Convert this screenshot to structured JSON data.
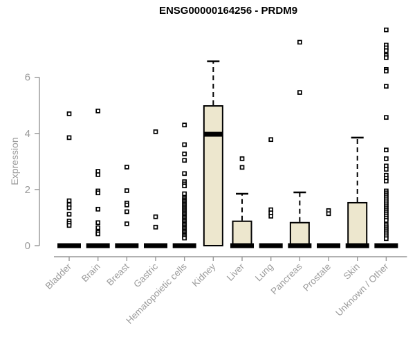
{
  "chart_data": {
    "type": "boxplot",
    "title": "ENSG00000164256 - PRDM9",
    "ylabel": "Expression",
    "xlabel": "",
    "ylim": [
      0,
      7.8
    ],
    "yticks": [
      0,
      2,
      4,
      6
    ],
    "grid": false,
    "legend": "none",
    "colors": {
      "box_fill": "#EDE7CE",
      "box_stroke": "#000000",
      "axis": "#979797",
      "tick_text": "#9b9b9b",
      "title_text": "#000000",
      "background": "#ffffff"
    },
    "categories": [
      {
        "label": "Bladder",
        "q1": 0,
        "median": 0,
        "q3": 0,
        "whisker_low": 0,
        "whisker_high": 0,
        "outliers": [
          4.7,
          3.85,
          1.6,
          1.46,
          1.35,
          1.12,
          0.88,
          0.8,
          0.72
        ]
      },
      {
        "label": "Brain",
        "q1": 0,
        "median": 0,
        "q3": 0,
        "whisker_low": 0,
        "whisker_high": 0,
        "outliers": [
          4.8,
          2.65,
          2.53,
          1.95,
          1.88,
          1.3,
          0.82,
          0.64,
          0.48,
          0.42
        ]
      },
      {
        "label": "Breast",
        "q1": 0,
        "median": 0,
        "q3": 0,
        "whisker_low": 0,
        "whisker_high": 0,
        "outliers": [
          2.8,
          1.96,
          1.52,
          1.45,
          1.21,
          0.78
        ]
      },
      {
        "label": "Gastric",
        "q1": 0,
        "median": 0,
        "q3": 0,
        "whisker_low": 0,
        "whisker_high": 0,
        "outliers": [
          4.06,
          1.03,
          0.66
        ]
      },
      {
        "label": "Hematopoietic cells",
        "q1": 0,
        "median": 0,
        "q3": 0,
        "whisker_low": 0,
        "whisker_high": 0,
        "outliers": [
          4.3,
          3.6,
          3.27,
          3.04,
          2.57,
          2.28,
          2.2,
          2.13,
          1.85,
          1.72,
          1.67,
          1.62,
          1.57,
          1.52,
          1.47,
          1.42,
          1.37,
          1.32,
          1.27,
          1.22,
          1.17,
          1.12,
          1.07,
          1.02,
          0.97,
          0.92,
          0.87,
          0.82,
          0.77,
          0.72,
          0.67,
          0.62,
          0.57,
          0.52,
          0.47,
          0.42,
          0.37,
          0.32,
          0.27
        ]
      },
      {
        "label": "Kidney",
        "q1": 0,
        "median": 3.97,
        "q3": 4.98,
        "whisker_low": 0,
        "whisker_high": 6.57,
        "outliers": []
      },
      {
        "label": "Liver",
        "q1": 0,
        "median": 0,
        "q3": 0.87,
        "whisker_low": 0,
        "whisker_high": 1.85,
        "outliers": [
          3.1,
          2.79
        ]
      },
      {
        "label": "Lung",
        "q1": 0,
        "median": 0,
        "q3": 0,
        "whisker_low": 0,
        "whisker_high": 0,
        "outliers": [
          3.78,
          1.28,
          1.17,
          1.05
        ]
      },
      {
        "label": "Pancreas",
        "q1": 0,
        "median": 0,
        "q3": 0.82,
        "whisker_low": 0,
        "whisker_high": 1.9,
        "outliers": [
          7.25,
          5.46
        ]
      },
      {
        "label": "Prostate",
        "q1": 0,
        "median": 0,
        "q3": 0,
        "whisker_low": 0,
        "whisker_high": 0,
        "outliers": [
          1.25,
          1.14
        ]
      },
      {
        "label": "Skin",
        "q1": 0,
        "median": 0,
        "q3": 1.53,
        "whisker_low": 0,
        "whisker_high": 3.85,
        "outliers": []
      },
      {
        "label": "Unknown / Other",
        "q1": 0,
        "median": 0,
        "q3": 0,
        "whisker_low": 0,
        "whisker_high": 0,
        "outliers": [
          7.69,
          7.15,
          7.05,
          6.95,
          6.78,
          6.7,
          6.28,
          6.22,
          5.68,
          4.57,
          3.41,
          3.1,
          2.84,
          2.72,
          2.51,
          2.4,
          2.3,
          1.95,
          1.88,
          1.81,
          1.74,
          1.67,
          1.6,
          1.53,
          1.46,
          1.39,
          1.32,
          1.25,
          1.18,
          1.11,
          1.04,
          0.97,
          0.9,
          0.74,
          0.67,
          0.6,
          0.53,
          0.46,
          0.39,
          0.32,
          0.25
        ]
      }
    ]
  }
}
